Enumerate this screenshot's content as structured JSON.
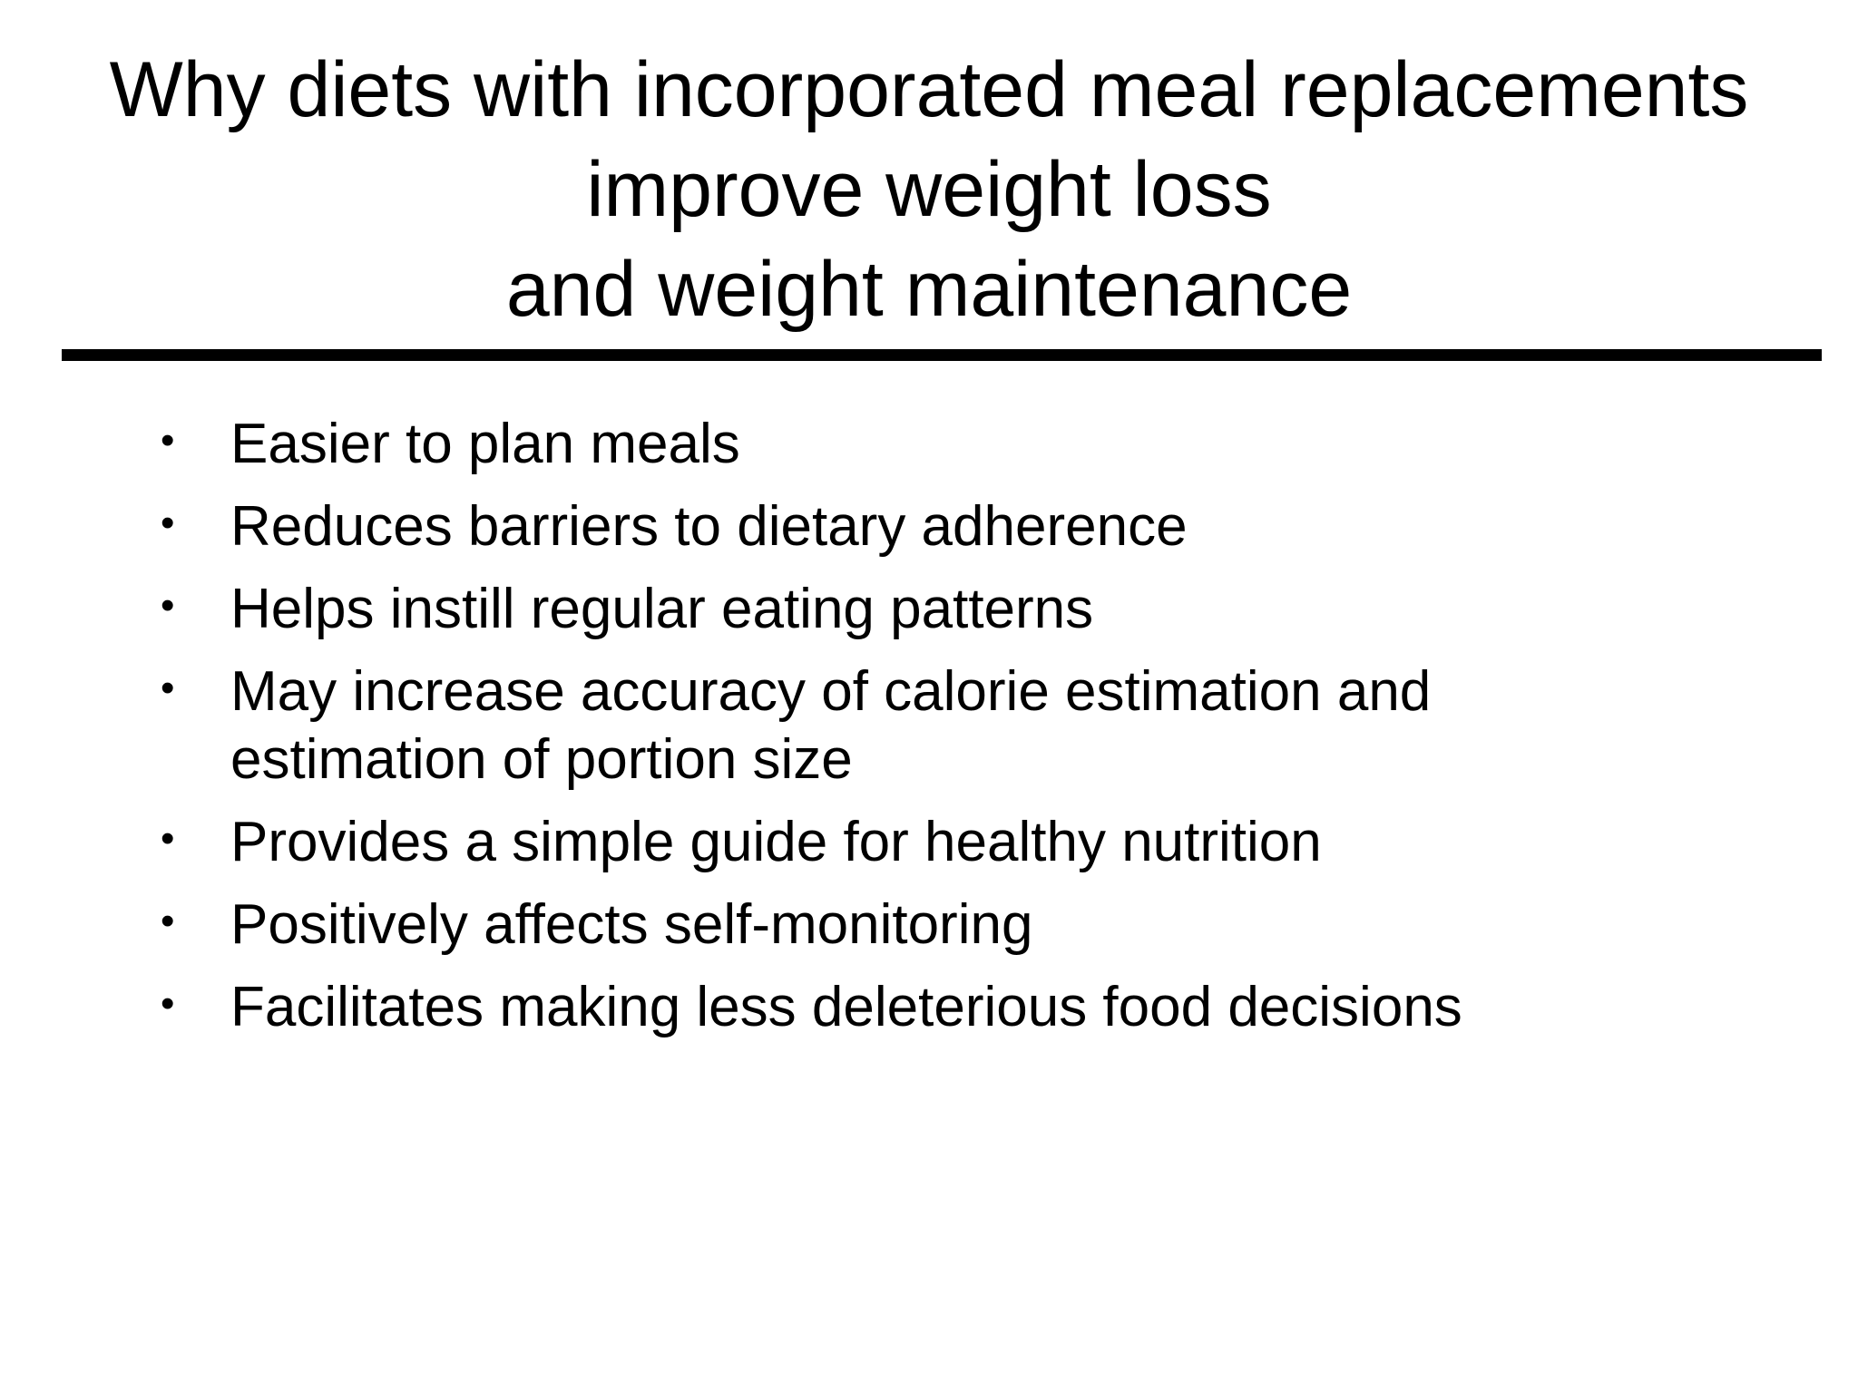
{
  "slide": {
    "title_lines": [
      "Why diets with incorporated meal replacements",
      "improve weight loss",
      "and weight maintenance"
    ],
    "bullet_glyph": "•",
    "bullets": [
      {
        "line1": "Easier to plan meals"
      },
      {
        "line1": "Reduces barriers to dietary adherence"
      },
      {
        "line1": "Helps instill regular eating patterns"
      },
      {
        "line1": "May increase accuracy of calorie estimation and",
        "line2": "estimation of portion size"
      },
      {
        "line1": "Provides a simple guide for healthy nutrition"
      },
      {
        "line1": "Positively affects self-monitoring"
      },
      {
        "line1": "Facilitates making less deleterious food decisions"
      }
    ]
  }
}
